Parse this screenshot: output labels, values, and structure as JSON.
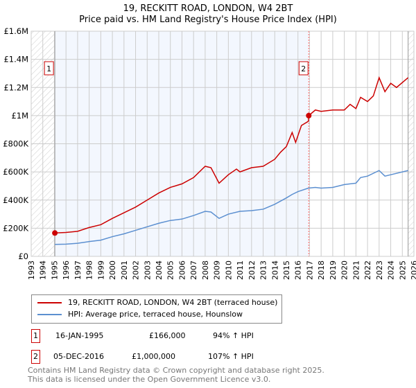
{
  "title": "19, RECKITT ROAD, LONDON, W4 2BT",
  "subtitle": "Price paid vs. HM Land Registry's House Price Index (HPI)",
  "chart_data": {
    "type": "line",
    "title": "19, RECKITT ROAD, LONDON, W4 2BT — Price paid vs. HM Land Registry's House Price Index (HPI)",
    "xlim": [
      1993,
      2026
    ],
    "ylim": [
      0,
      1600000
    ],
    "x_ticks": [
      "1993",
      "1994",
      "1995",
      "1996",
      "1997",
      "1998",
      "1999",
      "2000",
      "2001",
      "2002",
      "2003",
      "2004",
      "2005",
      "2006",
      "2007",
      "2008",
      "2009",
      "2010",
      "2011",
      "2012",
      "2013",
      "2014",
      "2015",
      "2016",
      "2017",
      "2018",
      "2019",
      "2020",
      "2021",
      "2022",
      "2023",
      "2024",
      "2025",
      "2026"
    ],
    "y_ticks": [
      {
        "v": 0,
        "label": "£0"
      },
      {
        "v": 200000,
        "label": "£200K"
      },
      {
        "v": 400000,
        "label": "£400K"
      },
      {
        "v": 600000,
        "label": "£600K"
      },
      {
        "v": 800000,
        "label": "£800K"
      },
      {
        "v": 1000000,
        "label": "£1M"
      },
      {
        "v": 1200000,
        "label": "£1.2M"
      },
      {
        "v": 1400000,
        "label": "£1.4M"
      },
      {
        "v": 1600000,
        "label": "£1.6M"
      }
    ],
    "grid": true,
    "series": [
      {
        "name": "19, RECKITT ROAD, LONDON, W4 2BT (terraced house)",
        "color": "#cc0000",
        "x": [
          1995.04,
          1996,
          1997,
          1998,
          1999,
          2000,
          2001,
          2002,
          2003,
          2004,
          2005,
          2006,
          2007,
          2008,
          2008.5,
          2009.2,
          2010,
          2010.7,
          2011,
          2012,
          2013,
          2014,
          2014.5,
          2015,
          2015.5,
          2015.8,
          2016.3,
          2016.9,
          2016.93,
          2017.5,
          2018,
          2019,
          2020,
          2020.5,
          2021,
          2021.4,
          2022,
          2022.5,
          2023,
          2023.5,
          2024,
          2024.5,
          2025.5
        ],
        "y": [
          166000,
          170000,
          178000,
          205000,
          225000,
          270000,
          310000,
          350000,
          400000,
          450000,
          490000,
          515000,
          560000,
          640000,
          630000,
          520000,
          580000,
          620000,
          600000,
          630000,
          640000,
          690000,
          740000,
          780000,
          880000,
          810000,
          930000,
          960000,
          1000000,
          1040000,
          1030000,
          1040000,
          1040000,
          1080000,
          1050000,
          1130000,
          1100000,
          1140000,
          1270000,
          1170000,
          1230000,
          1200000,
          1270000
        ]
      },
      {
        "name": "HPI: Average price, terraced house, Hounslow",
        "color": "#5b8fd0",
        "x": [
          1995.04,
          1996,
          1997,
          1998,
          1999,
          2000,
          2001,
          2002,
          2003,
          2004,
          2005,
          2006,
          2007,
          2008,
          2008.5,
          2009.2,
          2010,
          2011,
          2012,
          2013,
          2014,
          2015,
          2015.5,
          2016,
          2016.9,
          2017.5,
          2018,
          2019,
          2020,
          2021,
          2021.4,
          2022,
          2023,
          2023.5,
          2024,
          2025.5
        ],
        "y": [
          85000,
          87000,
          93000,
          105000,
          115000,
          140000,
          160000,
          185000,
          210000,
          235000,
          255000,
          265000,
          290000,
          320000,
          315000,
          270000,
          300000,
          320000,
          325000,
          335000,
          370000,
          415000,
          440000,
          460000,
          485000,
          490000,
          485000,
          490000,
          510000,
          520000,
          560000,
          570000,
          610000,
          570000,
          580000,
          610000
        ]
      }
    ],
    "markers": [
      {
        "label": "1",
        "x": 1995.04,
        "y": 166000
      },
      {
        "label": "2",
        "x": 2016.93,
        "y": 1000000
      }
    ],
    "legend": "below"
  },
  "legend": {
    "items": [
      "19, RECKITT ROAD, LONDON, W4 2BT (terraced house)",
      "HPI: Average price, terraced house, Hounslow"
    ]
  },
  "transactions": [
    {
      "num": "1",
      "date": "16-JAN-1995",
      "price": "£166,000",
      "hpi": "94% ↑ HPI"
    },
    {
      "num": "2",
      "date": "05-DEC-2016",
      "price": "£1,000,000",
      "hpi": "107% ↑ HPI"
    }
  ],
  "footer": {
    "line1": "Contains HM Land Registry data © Crown copyright and database right 2025.",
    "line2": "This data is licensed under the Open Government Licence v3.0."
  }
}
